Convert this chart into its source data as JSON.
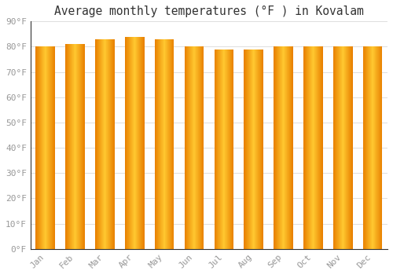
{
  "months": [
    "Jan",
    "Feb",
    "Mar",
    "Apr",
    "May",
    "Jun",
    "Jul",
    "Aug",
    "Sep",
    "Oct",
    "Nov",
    "Dec"
  ],
  "values": [
    80,
    81,
    83,
    84,
    83,
    80,
    79,
    79,
    80,
    80,
    80,
    80
  ],
  "title": "Average monthly temperatures (°F ) in Kovalam",
  "ylim": [
    0,
    90
  ],
  "yticks": [
    0,
    10,
    20,
    30,
    40,
    50,
    60,
    70,
    80,
    90
  ],
  "bar_color_left": "#E88000",
  "bar_color_center": "#FFC830",
  "bar_color_right": "#E88000",
  "background_color": "#FFFFFF",
  "plot_bg_color": "#FFFFFF",
  "grid_color": "#DDDDDD",
  "title_fontsize": 10.5,
  "tick_fontsize": 8,
  "tick_color": "#999999",
  "bar_width": 0.65,
  "gap_color": "#FFFFFF"
}
